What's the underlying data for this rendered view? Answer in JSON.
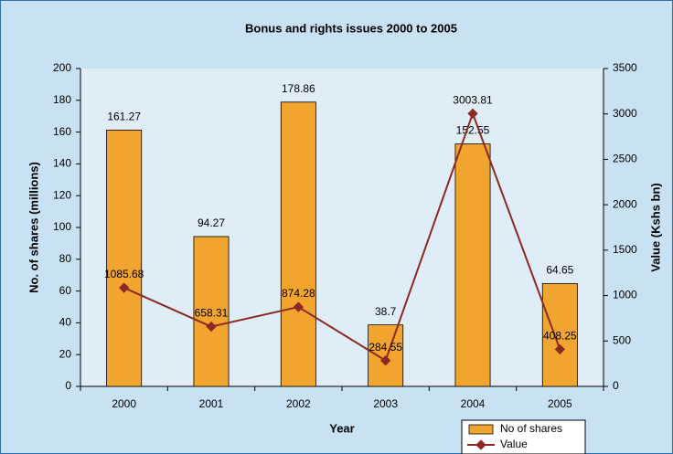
{
  "chart_data": {
    "type": "bar",
    "title": "Bonus and rights issues 2000 to 2005",
    "x_label": "Year",
    "y_label": "No. of shares (millions)",
    "y2_label": "Value (Kshs bn)",
    "categories": [
      "2000",
      "2001",
      "2002",
      "2003",
      "2004",
      "2005"
    ],
    "series": [
      {
        "name": "No of shares",
        "color": "#f2a52e",
        "values": [
          161.27,
          94.27,
          178.86,
          38.7,
          152.55,
          64.65
        ]
      },
      {
        "name": "Value",
        "color": "#8b2a22",
        "type": "line",
        "axis": "y2",
        "values": [
          1085.68,
          658.31,
          874.28,
          284.55,
          3003.81,
          408.25
        ]
      }
    ],
    "ylim": [
      0,
      200
    ],
    "yticks": [
      0,
      20,
      40,
      60,
      80,
      100,
      120,
      140,
      160,
      180,
      200
    ],
    "y2lim": [
      0,
      3500
    ],
    "y2ticks": [
      0,
      500,
      1000,
      1500,
      2000,
      2500,
      3000,
      3500
    ],
    "legend": "bottom-right"
  }
}
